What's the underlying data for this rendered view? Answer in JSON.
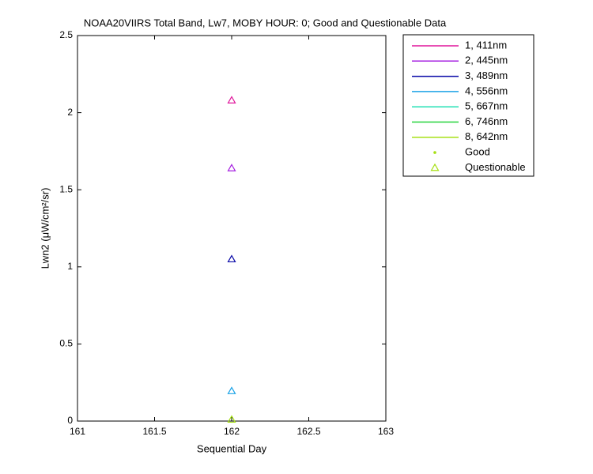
{
  "chart_data": {
    "type": "scatter",
    "title": "NOAA20VIIRS Total Band, Lw7, MOBY HOUR: 0;  Good and Questionable Data",
    "x_label": "Sequential Day",
    "y_label": "Lwn2 (μW/cm²/sr)",
    "x": [
      162
    ],
    "series": [
      {
        "name": "1, 411nm",
        "color": "#e0179c",
        "values": [
          2.08
        ]
      },
      {
        "name": "2, 445nm",
        "color": "#a51ee0",
        "values": [
          1.64
        ]
      },
      {
        "name": "3, 489nm",
        "color": "#0a0aa8",
        "values": [
          1.05
        ]
      },
      {
        "name": "4, 556nm",
        "color": "#1aa2e6",
        "values": [
          0.195
        ]
      },
      {
        "name": "5, 667nm",
        "color": "#22e0b4",
        "values": [
          null
        ]
      },
      {
        "name": "6, 746nm",
        "color": "#22d43a",
        "values": [
          null
        ]
      },
      {
        "name": "8, 642nm",
        "color": "#a6e014",
        "values": [
          0.01
        ]
      }
    ],
    "marker_legend": [
      {
        "name": "Good",
        "color": "#a6e014",
        "marker": "dot"
      },
      {
        "name": "Questionable",
        "color": "#a6e014",
        "marker": "triangle"
      }
    ],
    "xlim": [
      161,
      163
    ],
    "xticks": [
      161,
      161.5,
      162,
      162.5,
      163
    ],
    "ylim": [
      0,
      2.5
    ],
    "yticks": [
      0,
      0.5,
      1,
      1.5,
      2,
      2.5
    ],
    "grid": false
  }
}
